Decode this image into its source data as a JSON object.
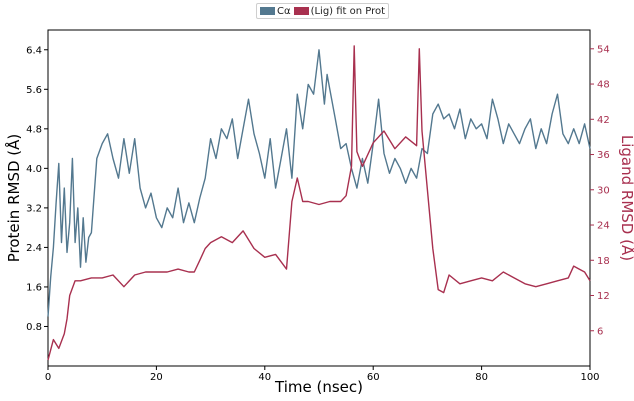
{
  "chart_data": {
    "type": "line",
    "xlabel": "Time (nsec)",
    "ylabel_left": "Protein RMSD (Å)",
    "ylabel_right": "Ligand RMSD (Å)",
    "xlim": [
      0,
      100
    ],
    "ylim_left": [
      0,
      6.8
    ],
    "ylim_right": [
      0,
      57.2
    ],
    "x_ticks": [
      "0",
      "20",
      "40",
      "60",
      "80",
      "100"
    ],
    "y_left_ticks": [
      "0.8",
      "1.6",
      "2.4",
      "3.2",
      "4.0",
      "4.8",
      "5.6",
      "6.4"
    ],
    "y_right_ticks": [
      "6",
      "12",
      "18",
      "24",
      "30",
      "36",
      "42",
      "48",
      "54"
    ],
    "legend": [
      "Cα",
      "(Lig) fit on Prot"
    ],
    "colors": {
      "protein": "#53788f",
      "ligand": "#a8304f"
    },
    "series": [
      {
        "name": "Cα",
        "axis": "left",
        "x": [
          0,
          0.5,
          1,
          1.5,
          2,
          2.5,
          3,
          3.5,
          4,
          4.5,
          5,
          5.5,
          6,
          6.5,
          7,
          7.5,
          8,
          9,
          10,
          11,
          12,
          13,
          14,
          15,
          16,
          17,
          18,
          19,
          20,
          21,
          22,
          23,
          24,
          25,
          26,
          27,
          28,
          29,
          30,
          31,
          32,
          33,
          34,
          35,
          36,
          37,
          38,
          39,
          40,
          41,
          42,
          43,
          44,
          45,
          46,
          47,
          48,
          49,
          50,
          51,
          51.5,
          52,
          53,
          54,
          55,
          56,
          57,
          58,
          59,
          60,
          61,
          62,
          63,
          64,
          65,
          66,
          67,
          68,
          69,
          70,
          71,
          72,
          73,
          74,
          75,
          76,
          77,
          78,
          79,
          80,
          81,
          82,
          83,
          84,
          85,
          86,
          87,
          88,
          89,
          90,
          91,
          92,
          93,
          94,
          95,
          96,
          97,
          98,
          99,
          100
        ],
        "values": [
          1.0,
          1.8,
          2.4,
          3.3,
          4.1,
          2.5,
          3.6,
          2.3,
          2.9,
          4.2,
          2.5,
          3.2,
          2.0,
          3.0,
          2.1,
          2.6,
          2.7,
          4.2,
          4.5,
          4.7,
          4.2,
          3.8,
          4.6,
          3.9,
          4.6,
          3.6,
          3.2,
          3.5,
          3.0,
          2.8,
          3.2,
          3.0,
          3.6,
          2.9,
          3.3,
          2.9,
          3.4,
          3.8,
          4.6,
          4.2,
          4.8,
          4.6,
          5.0,
          4.2,
          4.8,
          5.4,
          4.7,
          4.3,
          3.8,
          4.6,
          3.6,
          4.2,
          4.8,
          3.8,
          5.5,
          4.8,
          5.7,
          5.5,
          6.4,
          5.3,
          5.9,
          5.6,
          5.0,
          4.4,
          4.5,
          4.0,
          3.6,
          4.2,
          3.7,
          4.5,
          5.4,
          4.3,
          3.9,
          4.2,
          4.0,
          3.7,
          4.0,
          3.8,
          4.4,
          4.3,
          5.1,
          5.3,
          5.0,
          5.1,
          4.8,
          5.2,
          4.6,
          5.0,
          4.8,
          4.9,
          4.6,
          5.4,
          5.0,
          4.5,
          4.9,
          4.7,
          4.5,
          4.8,
          5.0,
          4.4,
          4.8,
          4.5,
          5.1,
          5.5,
          4.7,
          4.5,
          4.8,
          4.5,
          4.9,
          4.4
        ]
      },
      {
        "name": "(Lig) fit on Prot",
        "axis": "right",
        "x": [
          0,
          1,
          2,
          3,
          3.5,
          4,
          5,
          6,
          8,
          10,
          12,
          14,
          16,
          18,
          20,
          22,
          24,
          26,
          27,
          28,
          29,
          30,
          32,
          34,
          36,
          38,
          40,
          42,
          44,
          45,
          46,
          47,
          48,
          50,
          52,
          54,
          55,
          56,
          56.5,
          57,
          58,
          60,
          62,
          64,
          66,
          68,
          68.5,
          69,
          70,
          71,
          72,
          73,
          74,
          76,
          78,
          80,
          82,
          84,
          86,
          88,
          90,
          92,
          94,
          96,
          97,
          98,
          99,
          100
        ],
        "values": [
          1.0,
          4.5,
          3.0,
          5.5,
          8.0,
          12.0,
          14.5,
          14.5,
          15.0,
          15.0,
          15.5,
          13.5,
          15.5,
          16.0,
          16.0,
          16.0,
          16.5,
          16.0,
          16.0,
          18.0,
          20.0,
          21.0,
          22.0,
          21.0,
          23.0,
          20.0,
          18.5,
          19.0,
          16.5,
          28.0,
          32.0,
          28.0,
          28.0,
          27.5,
          28.0,
          28.0,
          29.0,
          34.0,
          54.5,
          36.5,
          34.0,
          38.0,
          40.0,
          37.0,
          39.0,
          37.5,
          54.0,
          40.0,
          30.0,
          20.0,
          13.0,
          12.5,
          15.5,
          14.0,
          14.5,
          15.0,
          14.5,
          16.0,
          15.0,
          14.0,
          13.5,
          14.0,
          14.5,
          15.0,
          17.0,
          16.5,
          16.0,
          14.5
        ]
      }
    ]
  }
}
